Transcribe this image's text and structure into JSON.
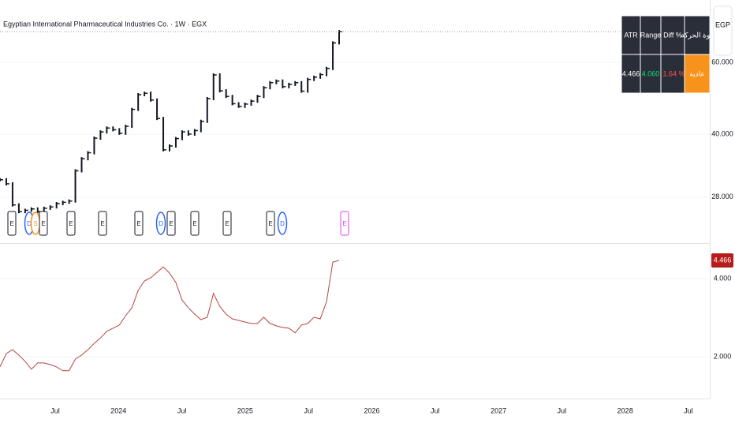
{
  "header": {
    "title": "Egyptian International Pharmaceutical Industries Co. · 1W · EGX",
    "currency": "EGP"
  },
  "table": {
    "header": [
      "ATR",
      "Range",
      "Diff %",
      "قوة الحركة"
    ],
    "rows": [
      [
        "4.466",
        "4.060",
        "-1.64 %",
        "عادية"
      ]
    ]
  },
  "events": [
    "E",
    "D",
    "S",
    "E",
    "E",
    "E",
    "E",
    "D",
    "E",
    "E",
    "E",
    "E",
    "D",
    "E"
  ],
  "xticks": [
    "Jul",
    "2024",
    "Jul",
    "2025",
    "Jul",
    "2026",
    "Jul",
    "2027",
    "Jul",
    "2028",
    "Jul"
  ],
  "chart_data": [
    {
      "type": "step",
      "color": "#131722",
      "log": true,
      "grid": true,
      "ylim": [
        21.6,
        85.4
      ],
      "yticks": [
        {
          "value": 28,
          "label": "28.000"
        },
        {
          "value": 40,
          "label": "40.000"
        },
        {
          "value": 60,
          "label": "60.000"
        }
      ],
      "values": [
        30.9,
        30.2,
        26.8,
        25.8,
        26.0,
        26.2,
        25.8,
        26.3,
        26.5,
        27.0,
        27.2,
        27.4,
        32.5,
        34.8,
        36.0,
        39.1,
        40.5,
        41.4,
        41.0,
        40.2,
        41.8,
        46.0,
        50.0,
        50.4,
        48.5,
        43.7,
        36.6,
        37.4,
        39.0,
        40.5,
        40.0,
        40.8,
        43.0,
        48.9,
        55.9,
        51.1,
        49.5,
        47.5,
        46.8,
        47.4,
        48.2,
        49.5,
        52.0,
        53.5,
        54.0,
        52.3,
        53.0,
        53.5,
        51.0,
        54.5,
        55.2,
        56.0,
        58.0,
        67.0,
        71.4
      ]
    },
    {
      "type": "line",
      "color": "#b5473d",
      "grid": true,
      "ylim": [
        1.03,
        4.91
      ],
      "yticks": [
        {
          "value": 2,
          "label": "2.000"
        },
        {
          "value": 4,
          "label": "4.000"
        }
      ],
      "values": [
        1.74,
        2.08,
        2.18,
        2.04,
        1.88,
        1.68,
        1.84,
        1.84,
        1.8,
        1.74,
        1.64,
        1.64,
        1.94,
        2.04,
        2.18,
        2.34,
        2.48,
        2.65,
        2.73,
        2.81,
        3.05,
        3.25,
        3.7,
        3.94,
        4.02,
        4.16,
        4.3,
        4.14,
        3.9,
        3.45,
        3.25,
        3.09,
        2.95,
        3.01,
        3.62,
        3.29,
        3.09,
        2.97,
        2.93,
        2.89,
        2.85,
        2.85,
        3.01,
        2.85,
        2.79,
        2.75,
        2.73,
        2.61,
        2.81,
        2.85,
        3.01,
        2.97,
        3.41,
        4.42,
        4.466
      ]
    }
  ]
}
